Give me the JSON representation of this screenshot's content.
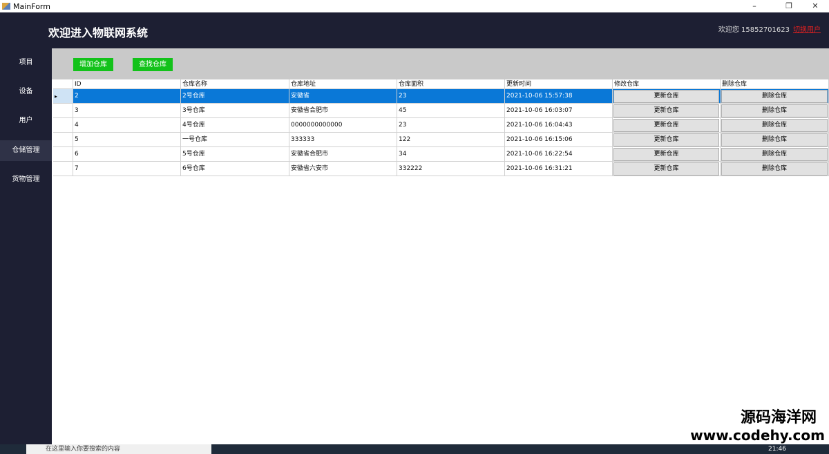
{
  "window": {
    "title": "MainForm",
    "min": "–",
    "max": "❐",
    "close": "✕"
  },
  "header": {
    "title": "欢迎进入物联网系统",
    "welcome": "欢迎您 15852701623",
    "switch_user": "切换用户"
  },
  "sidebar": {
    "items": [
      {
        "label": "项目"
      },
      {
        "label": "设备"
      },
      {
        "label": "用户"
      },
      {
        "label": "仓储管理",
        "active": true
      },
      {
        "label": "货物管理"
      }
    ]
  },
  "toolbar": {
    "add": "增加仓库",
    "find": "查找仓库"
  },
  "table": {
    "columns": [
      "ID",
      "仓库名称",
      "仓库地址",
      "仓库面积",
      "更新时间",
      "修改仓库",
      "删除仓库"
    ],
    "update_label": "更新仓库",
    "delete_label": "删除仓库",
    "rows": [
      {
        "id": "2",
        "name": "2号仓库",
        "addr": "安徽省",
        "area": "23",
        "time": "2021-10-06 15:57:38",
        "selected": true
      },
      {
        "id": "3",
        "name": "3号仓库",
        "addr": "安徽省合肥市",
        "area": "45",
        "time": "2021-10-06 16:03:07"
      },
      {
        "id": "4",
        "name": "4号仓库",
        "addr": "0000000000000",
        "area": "23",
        "time": "2021-10-06 16:04:43"
      },
      {
        "id": "5",
        "name": "一号仓库",
        "addr": "333333",
        "area": "122",
        "time": "2021-10-06 16:15:06"
      },
      {
        "id": "6",
        "name": "5号仓库",
        "addr": "安徽省合肥市",
        "area": "34",
        "time": "2021-10-06 16:22:54"
      },
      {
        "id": "7",
        "name": "6号仓库",
        "addr": "安徽省六安市",
        "area": "332222",
        "time": "2021-10-06 16:31:21"
      }
    ]
  },
  "taskbar": {
    "search_placeholder": "在这里输入你要搜索的内容",
    "clock": "21:46"
  },
  "watermark": {
    "line1": "源码海洋网",
    "line2": "www.codehy.com"
  }
}
